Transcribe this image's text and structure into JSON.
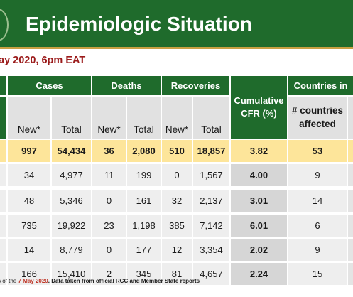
{
  "header": {
    "title": "Epidemiologic Situation"
  },
  "subtitle": "ay 2020, 6pm EAT",
  "table": {
    "groups": [
      "Cases",
      "Deaths",
      "Recoveries",
      "Countries in"
    ],
    "cfr_label": "Cumulative CFR (%)",
    "countries_sub": "# countries affected",
    "sub_new": "New*",
    "sub_total": "Total",
    "totals": [
      "997",
      "54,434",
      "36",
      "2,080",
      "510",
      "18,857",
      "3.82",
      "53"
    ],
    "rows": [
      [
        "34",
        "4,977",
        "11",
        "199",
        "0",
        "1,567",
        "4.00",
        "9"
      ],
      [
        "48",
        "5,346",
        "0",
        "161",
        "32",
        "2,137",
        "3.01",
        "14"
      ],
      [
        "735",
        "19,922",
        "23",
        "1,198",
        "385",
        "7,142",
        "6.01",
        "6"
      ],
      [
        "14",
        "8,779",
        "0",
        "177",
        "12",
        "3,354",
        "2.02",
        "9"
      ],
      [
        "166",
        "15,410",
        "2",
        "345",
        "81",
        "4,657",
        "2.24",
        "15"
      ]
    ]
  },
  "footnote": {
    "pre": "s of the",
    "date": "7 May 2020",
    "post": ". Data taken from official RCC and Member State reports"
  },
  "colors": {
    "green": "#1f6b2c",
    "gold": "#c8a043",
    "yellow_row": "#fde59a",
    "maroon": "#9b1b1b"
  }
}
